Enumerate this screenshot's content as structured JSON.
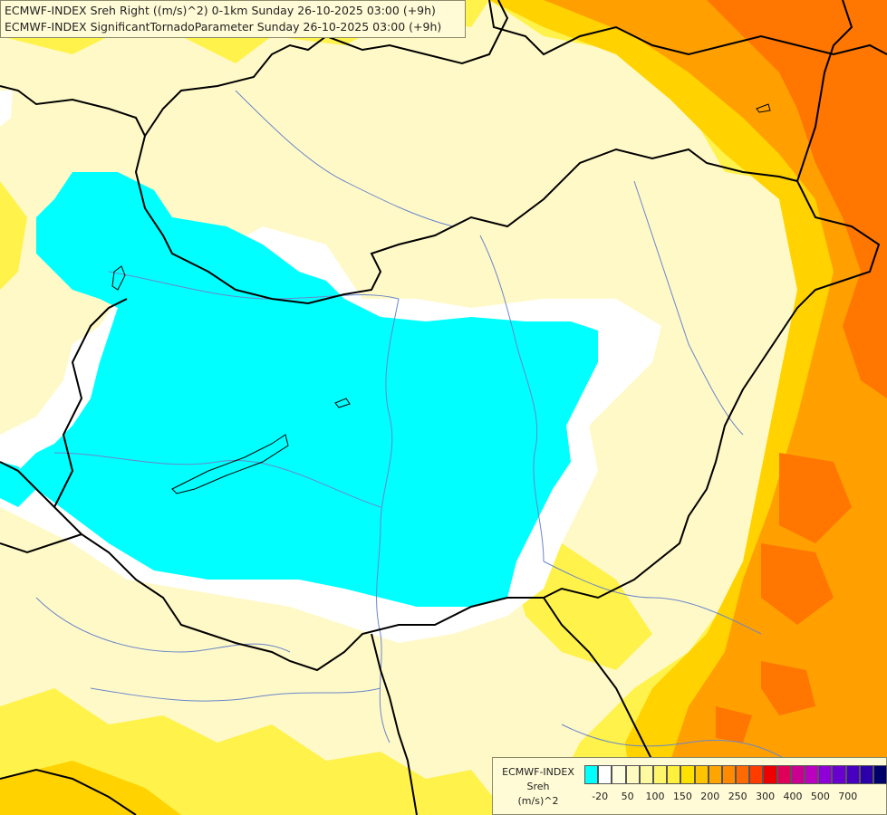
{
  "header": {
    "line1": "ECMWF-INDEX Sreh Right ((m/s)^2) 0-1km Sunday 26-10-2025 03:00 (+9h)",
    "line2": "ECMWF-INDEX SignificantTornadoParameter Sunday 26-10-2025 03:00 (+9h)"
  },
  "legend": {
    "title1": "ECMWF-INDEX",
    "title2": "Sreh",
    "unit": "(m/s)^2",
    "tick_labels": [
      "-20",
      "50",
      "100",
      "150",
      "200",
      "250",
      "300",
      "400",
      "500",
      "700"
    ],
    "colors": [
      "#00ffff",
      "#ffffff",
      "#fffde0",
      "#fffbc0",
      "#fff9a0",
      "#fff56a",
      "#fff03c",
      "#ffe100",
      "#ffc300",
      "#ffa500",
      "#ff8a00",
      "#ff6a00",
      "#ff3c00",
      "#ee0000",
      "#e0005a",
      "#cc0090",
      "#bb00c0",
      "#8f00d8",
      "#6a00d0",
      "#4800c0",
      "#2c00a8",
      "#00006a"
    ]
  },
  "colors": {
    "cyan": "#00ffff",
    "white": "#ffffff",
    "pale": "#fff9c8",
    "yellow": "#fff24a",
    "gold": "#ffd200",
    "orange": "#ffa000",
    "deep_orange": "#ff7600",
    "border": "#000000",
    "river": "#6a86c8"
  }
}
